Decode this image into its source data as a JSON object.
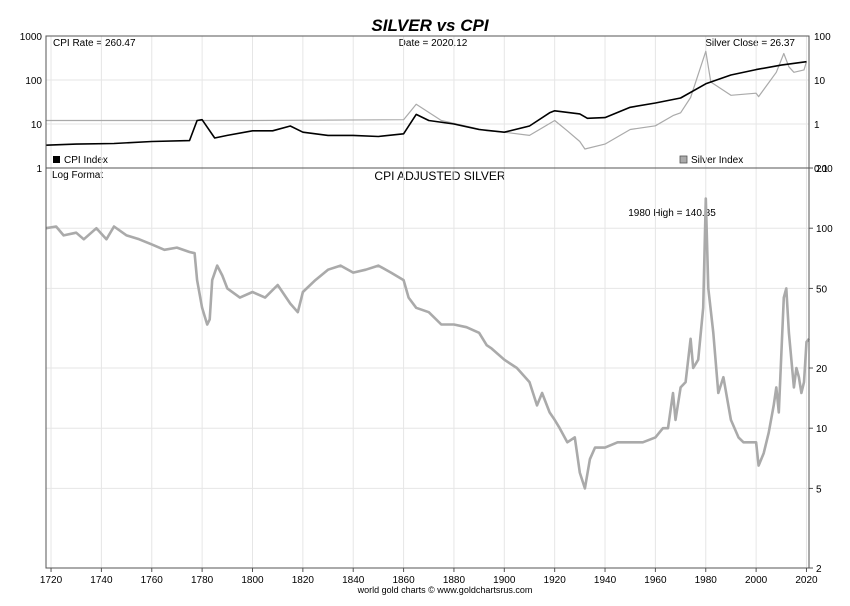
{
  "chart_data": [
    {
      "type": "line",
      "title": "SILVER vs CPI",
      "title_color": "#1a1ad6",
      "scale": "log",
      "readouts": {
        "cpi_rate": "CPI Rate = 260.47",
        "date": "Date = 2020.12",
        "silver_close": "Silver Close = 26.37"
      },
      "y_left_ticks": [
        "1000",
        "100",
        "10",
        "1"
      ],
      "y_left_values": [
        1000,
        100,
        10,
        1
      ],
      "y_right_ticks": [
        "100",
        "10",
        "1",
        "0.1"
      ],
      "y_right_values": [
        100,
        10,
        1,
        0.1
      ],
      "y_left_range": [
        1,
        1000
      ],
      "y_right_range": [
        0.1,
        100
      ],
      "legend": [
        {
          "label": "CPI Index",
          "color": "#000000"
        },
        {
          "label": "Silver Index",
          "color": "#aaaaaa"
        }
      ],
      "series": [
        {
          "name": "CPI Index",
          "axis": "left",
          "color": "#000000",
          "x": [
            1718,
            1730,
            1745,
            1760,
            1775,
            1778,
            1780,
            1785,
            1790,
            1800,
            1808,
            1815,
            1820,
            1830,
            1840,
            1850,
            1860,
            1865,
            1870,
            1880,
            1890,
            1900,
            1910,
            1918,
            1920,
            1930,
            1933,
            1940,
            1950,
            1960,
            1970,
            1980,
            1990,
            2000,
            2010,
            2020
          ],
          "values": [
            3.3,
            3.5,
            3.6,
            4.0,
            4.2,
            12.0,
            12.5,
            4.8,
            5.5,
            7.0,
            7.0,
            9.0,
            6.5,
            5.5,
            5.5,
            5.2,
            6.0,
            16.5,
            12.0,
            10.0,
            7.5,
            6.5,
            9.0,
            18.0,
            20.0,
            17.0,
            13.5,
            14.0,
            24.0,
            30.0,
            39.0,
            82.0,
            130.0,
            172.0,
            218.0,
            260.47
          ]
        },
        {
          "name": "Silver Index",
          "axis": "right",
          "color": "#aaaaaa",
          "x": [
            1718,
            1800,
            1860,
            1865,
            1875,
            1893,
            1900,
            1910,
            1920,
            1925,
            1930,
            1932,
            1940,
            1950,
            1960,
            1967,
            1970,
            1974,
            1980,
            1982,
            1990,
            2000,
            2001,
            2008,
            2011,
            2013,
            2015,
            2019,
            2020
          ],
          "values": [
            1.2,
            1.2,
            1.25,
            2.8,
            1.2,
            0.7,
            0.65,
            0.55,
            1.2,
            0.7,
            0.4,
            0.27,
            0.35,
            0.75,
            0.91,
            1.55,
            1.8,
            4.0,
            45.0,
            9.0,
            4.5,
            5.0,
            4.2,
            15.0,
            40.0,
            20.0,
            15.0,
            17.0,
            26.37
          ]
        }
      ]
    },
    {
      "type": "line",
      "title": "CPI ADJUSTED SILVER",
      "title_color": "#1a1ad6",
      "scale": "log",
      "scale_label": "Log Format",
      "annotation": "1980 High = 140.85",
      "x_range": [
        1718,
        2021
      ],
      "y_range": [
        2,
        200
      ],
      "x_ticks": [
        "1720",
        "1740",
        "1760",
        "1780",
        "1800",
        "1820",
        "1840",
        "1860",
        "1880",
        "1900",
        "1920",
        "1940",
        "1960",
        "1980",
        "2000",
        "2020"
      ],
      "x_tick_values": [
        1720,
        1740,
        1760,
        1780,
        1800,
        1820,
        1840,
        1860,
        1880,
        1900,
        1920,
        1940,
        1960,
        1980,
        2000,
        2020
      ],
      "y_right_ticks": [
        "200",
        "100",
        "50",
        "20",
        "10",
        "5",
        "2"
      ],
      "y_right_values": [
        200,
        100,
        50,
        20,
        10,
        5,
        2
      ],
      "grid": true,
      "series": [
        {
          "name": "CPI Adjusted Silver",
          "color": "#aaaaaa",
          "x": [
            1718,
            1722,
            1725,
            1730,
            1733,
            1738,
            1742,
            1745,
            1750,
            1755,
            1760,
            1765,
            1770,
            1775,
            1777,
            1778,
            1780,
            1782,
            1783,
            1784,
            1786,
            1788,
            1790,
            1795,
            1800,
            1805,
            1810,
            1815,
            1818,
            1820,
            1825,
            1830,
            1835,
            1840,
            1845,
            1850,
            1855,
            1860,
            1862,
            1865,
            1870,
            1875,
            1880,
            1885,
            1890,
            1893,
            1895,
            1900,
            1905,
            1910,
            1913,
            1915,
            1918,
            1920,
            1922,
            1925,
            1928,
            1930,
            1932,
            1934,
            1936,
            1940,
            1945,
            1950,
            1955,
            1960,
            1963,
            1965,
            1967,
            1968,
            1970,
            1972,
            1974,
            1975,
            1977,
            1979,
            1980,
            1981,
            1983,
            1985,
            1987,
            1990,
            1993,
            1995,
            1998,
            2000,
            2001,
            2003,
            2005,
            2007,
            2008,
            2009,
            2011,
            2012,
            2013,
            2015,
            2016,
            2017,
            2018,
            2019,
            2020,
            2021
          ],
          "values": [
            100,
            102,
            92,
            95,
            88,
            100,
            88,
            102,
            92,
            88,
            83,
            78,
            80,
            76,
            75,
            55,
            40,
            33,
            35,
            55,
            65,
            58,
            50,
            45,
            48,
            45,
            52,
            42,
            38,
            48,
            55,
            62,
            65,
            60,
            62,
            65,
            60,
            55,
            45,
            40,
            38,
            33,
            33,
            32,
            30,
            26,
            25,
            22,
            20,
            17,
            13,
            15,
            12,
            11,
            10,
            8.5,
            9,
            6,
            5,
            7,
            8,
            8,
            8.5,
            8.5,
            8.5,
            9,
            10,
            10,
            15,
            11,
            16,
            17,
            28,
            20,
            22,
            40,
            140.85,
            50,
            30,
            15,
            18,
            11,
            9,
            8.5,
            8.5,
            8.5,
            6.5,
            7.5,
            9.5,
            13,
            16,
            12,
            45,
            50,
            30,
            16,
            20,
            18,
            15,
            17,
            27,
            28
          ]
        }
      ]
    }
  ],
  "footer": "world gold charts © www.goldchartsrus.com"
}
